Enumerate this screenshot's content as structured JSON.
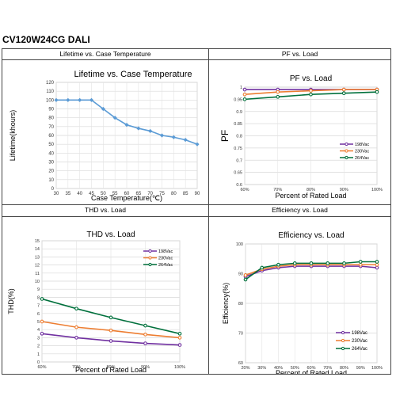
{
  "document": {
    "title": "CV120W24CG DALI"
  },
  "panels": [
    {
      "header": "Lifetime vs. Case Temperature"
    },
    {
      "header": "PF vs. Load"
    },
    {
      "header": "THD vs. Load"
    },
    {
      "header": "Efficiency vs. Load"
    }
  ],
  "chart_data": [
    {
      "type": "line",
      "title": "Lifetime vs. Case Temperature",
      "xlabel": "Case Temperature(℃)",
      "ylabel": "Lifetime(khours)",
      "xlim": [
        30,
        90
      ],
      "ylim": [
        0,
        120
      ],
      "xticks": [
        30,
        35,
        40,
        45,
        50,
        55,
        60,
        65,
        70,
        75,
        80,
        85,
        90
      ],
      "yticks": [
        0,
        10,
        20,
        30,
        40,
        50,
        60,
        70,
        80,
        90,
        100,
        110,
        120
      ],
      "grid": true,
      "series": [
        {
          "x": [
            30,
            35,
            40,
            45,
            50,
            55,
            60,
            65,
            70,
            75,
            80,
            85,
            90
          ],
          "values": [
            100,
            100,
            100,
            100,
            90,
            80,
            72,
            68,
            65,
            60,
            58,
            55,
            50
          ],
          "color": "#5b9bd5"
        }
      ]
    },
    {
      "type": "line",
      "title": "PF vs. Load",
      "xlabel": "Percent of Rated Load",
      "ylabel": "PF",
      "categories": [
        "60%",
        "70%",
        "80%",
        "90%",
        "100%"
      ],
      "ylim": [
        0.6,
        1
      ],
      "yticks": [
        "0.6",
        "0.65",
        "0.7",
        "0.75",
        "0.8",
        "0.85",
        "0.9",
        "0.95",
        "1"
      ],
      "grid": true,
      "legend_position": "bottom-right",
      "series": [
        {
          "name": "198Vac",
          "values": [
            0.99,
            0.99,
            0.99,
            0.99,
            0.99
          ],
          "color": "#7030a0"
        },
        {
          "name": "230Vac",
          "values": [
            0.97,
            0.98,
            0.985,
            0.99,
            0.99
          ],
          "color": "#ed7d31"
        },
        {
          "name": "264Vac",
          "values": [
            0.95,
            0.96,
            0.97,
            0.975,
            0.98
          ],
          "color": "#00703c"
        }
      ]
    },
    {
      "type": "line",
      "title": "THD vs. Load",
      "xlabel": "Percent of Rated Load",
      "ylabel": "THD(%)",
      "categories": [
        "60%",
        "70%",
        "80%",
        "90%",
        "100%"
      ],
      "ylim": [
        0,
        15
      ],
      "yticks": [
        0,
        1,
        2,
        3,
        4,
        5,
        6,
        7,
        8,
        9,
        10,
        11,
        12,
        13,
        14,
        15
      ],
      "grid": true,
      "legend_position": "top-right",
      "series": [
        {
          "name": "198Vac",
          "values": [
            3.5,
            3.0,
            2.6,
            2.3,
            2.1
          ],
          "color": "#7030a0"
        },
        {
          "name": "230Vac",
          "values": [
            5.0,
            4.3,
            3.9,
            3.4,
            3.0
          ],
          "color": "#ed7d31"
        },
        {
          "name": "264Vac",
          "values": [
            7.8,
            6.6,
            5.5,
            4.5,
            3.5
          ],
          "color": "#00703c"
        }
      ]
    },
    {
      "type": "line",
      "title": "Efficiency vs. Load",
      "xlabel": "Percent of Rated Load",
      "ylabel": "Efficiency(%)",
      "categories": [
        "20%",
        "30%",
        "40%",
        "50%",
        "60%",
        "70%",
        "80%",
        "90%",
        "100%"
      ],
      "ylim": [
        60,
        100
      ],
      "yticks": [
        60,
        70,
        80,
        90,
        100
      ],
      "grid": true,
      "legend_position": "bottom-right",
      "series": [
        {
          "name": "198Vac",
          "values": [
            89,
            91,
            92,
            92.5,
            92.5,
            92.5,
            92.5,
            92.5,
            92
          ],
          "color": "#7030a0"
        },
        {
          "name": "230Vac",
          "values": [
            89.5,
            91.5,
            92.5,
            93,
            93,
            93,
            93,
            93,
            93
          ],
          "color": "#ed7d31"
        },
        {
          "name": "264Vac",
          "values": [
            88,
            92,
            93,
            93.5,
            93.5,
            93.5,
            93.5,
            94,
            94
          ],
          "color": "#00703c"
        }
      ]
    }
  ]
}
